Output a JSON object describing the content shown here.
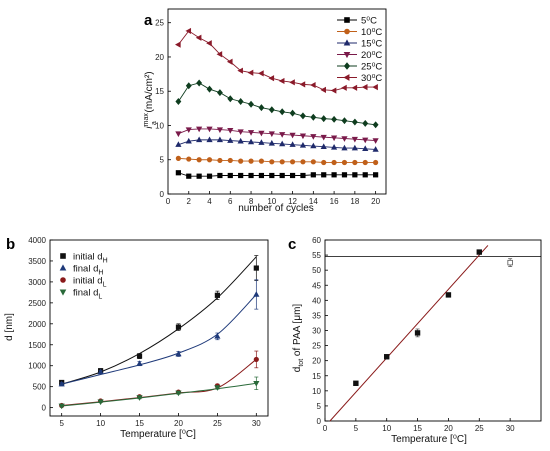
{
  "chart_data": [
    {
      "panel": "a",
      "type": "line",
      "xlabel": "number of cycles",
      "ylabel_main": "i",
      "ylabel_sup": "max",
      "ylabel_sub": "a",
      "ylabel_unit": " (mA/cm²)",
      "xlim": [
        0,
        21
      ],
      "ylim": [
        0,
        27
      ],
      "xticks": [
        "0",
        "2",
        "4",
        "6",
        "8",
        "10",
        "12",
        "14",
        "16",
        "18",
        "20"
      ],
      "yticks": [
        "0",
        "5",
        "10",
        "15",
        "20",
        "25"
      ],
      "legend_position": "right",
      "x": [
        1,
        2,
        3,
        4,
        5,
        6,
        7,
        8,
        9,
        10,
        11,
        12,
        13,
        14,
        15,
        16,
        17,
        18,
        19,
        20
      ],
      "series": [
        {
          "name": "5⁰C",
          "color": "#000000",
          "marker": "square",
          "values": [
            3.1,
            2.6,
            2.6,
            2.6,
            2.7,
            2.7,
            2.7,
            2.7,
            2.7,
            2.7,
            2.7,
            2.7,
            2.7,
            2.8,
            2.8,
            2.8,
            2.8,
            2.8,
            2.8,
            2.8
          ]
        },
        {
          "name": "10⁰C",
          "color": "#c0601a",
          "marker": "circle",
          "values": [
            5.2,
            5.1,
            5.0,
            5.0,
            4.9,
            4.9,
            4.8,
            4.8,
            4.8,
            4.7,
            4.7,
            4.7,
            4.7,
            4.7,
            4.6,
            4.6,
            4.6,
            4.6,
            4.6,
            4.6
          ]
        },
        {
          "name": "15⁰C",
          "color": "#1f2a6b",
          "marker": "triangle-up",
          "values": [
            7.2,
            7.7,
            7.9,
            7.9,
            7.9,
            7.8,
            7.7,
            7.6,
            7.5,
            7.4,
            7.3,
            7.2,
            7.1,
            7.0,
            6.9,
            6.8,
            6.7,
            6.7,
            6.6,
            6.5
          ]
        },
        {
          "name": "20⁰C",
          "color": "#7a1a4a",
          "marker": "triangle-down",
          "values": [
            8.8,
            9.4,
            9.5,
            9.5,
            9.4,
            9.3,
            9.1,
            9.0,
            8.9,
            8.8,
            8.7,
            8.6,
            8.5,
            8.4,
            8.3,
            8.2,
            8.1,
            8.0,
            7.9,
            7.8
          ]
        },
        {
          "name": "25⁰C",
          "color": "#0f3d1f",
          "marker": "diamond",
          "values": [
            13.5,
            15.8,
            16.2,
            15.3,
            14.8,
            13.9,
            13.5,
            13.1,
            12.6,
            12.3,
            12.0,
            11.8,
            11.4,
            11.2,
            11.0,
            10.9,
            10.7,
            10.5,
            10.3,
            10.1
          ]
        },
        {
          "name": "30⁰C",
          "color": "#8a1a2a",
          "marker": "triangle-left",
          "values": [
            21.8,
            23.8,
            22.8,
            22.0,
            20.4,
            19.3,
            18.0,
            17.7,
            17.6,
            16.9,
            16.5,
            16.3,
            16.0,
            15.9,
            15.2,
            15.1,
            15.5,
            15.5,
            15.6,
            15.6
          ]
        }
      ]
    },
    {
      "panel": "b",
      "type": "scatter",
      "xlabel": "Temperature [⁰C]",
      "ylabel": "d [nm]",
      "xlim": [
        3.5,
        31.5
      ],
      "ylim": [
        -200,
        4000
      ],
      "xticks": [
        "5",
        "10",
        "15",
        "20",
        "25",
        "30"
      ],
      "yticks": [
        "0",
        "500",
        "1000",
        "1500",
        "2000",
        "2500",
        "3000",
        "3500",
        "4000"
      ],
      "legend_position": "top-left",
      "x": [
        5,
        10,
        15,
        20,
        25,
        30
      ],
      "series": [
        {
          "name": "initial d",
          "sub": "H",
          "color": "#111111",
          "marker": "square",
          "values": [
            600,
            880,
            1230,
            1920,
            2680,
            3330
          ],
          "errors": [
            40,
            50,
            60,
            80,
            100,
            300
          ],
          "fit": [
            560,
            850,
            1290,
            1880,
            2620,
            3600
          ]
        },
        {
          "name": "final d",
          "sub": "H",
          "color": "#1f3a7a",
          "marker": "triangle-up",
          "values": [
            560,
            850,
            1050,
            1280,
            1700,
            2700
          ],
          "errors": [
            40,
            40,
            50,
            60,
            80,
            350
          ],
          "fit": [
            560,
            790,
            1020,
            1300,
            1750,
            2700
          ]
        },
        {
          "name": "initial d",
          "sub": "L",
          "color": "#8a1a1a",
          "marker": "circle",
          "values": [
            50,
            160,
            260,
            370,
            520,
            1150
          ],
          "errors": [
            20,
            20,
            30,
            30,
            40,
            200
          ],
          "fit": [
            50,
            140,
            240,
            350,
            470,
            1150
          ]
        },
        {
          "name": "final d",
          "sub": "L",
          "color": "#2a6a3a",
          "marker": "triangle-down",
          "values": [
            40,
            140,
            240,
            350,
            480,
            580
          ],
          "errors": [
            20,
            20,
            30,
            30,
            40,
            150
          ],
          "fit": [
            40,
            130,
            230,
            340,
            450,
            580
          ]
        }
      ]
    },
    {
      "panel": "c",
      "type": "scatter",
      "xlabel": "Temperature [⁰C]",
      "ylabel_main": "d",
      "ylabel_sub": "tot",
      "ylabel_rest": " of PAA [μm]",
      "xlim": [
        0,
        35
      ],
      "ylim": [
        0,
        60
      ],
      "xticks": [
        "0",
        "5",
        "10",
        "15",
        "20",
        "25",
        "30"
      ],
      "yticks": [
        "0",
        "5",
        "10",
        "15",
        "20",
        "25",
        "30",
        "35",
        "40",
        "45",
        "50",
        "55",
        "60"
      ],
      "points": [
        {
          "x": 5,
          "y": 12.5,
          "err": 0.4,
          "filled": true
        },
        {
          "x": 10,
          "y": 21.3,
          "err": 0.4,
          "filled": true
        },
        {
          "x": 15,
          "y": 29.2,
          "err": 1.3,
          "filled": true
        },
        {
          "x": 20,
          "y": 41.8,
          "err": 0.4,
          "filled": true
        },
        {
          "x": 25,
          "y": 56.0,
          "err": 0.4,
          "filled": true
        },
        {
          "x": 30,
          "y": 52.5,
          "err": 1.3,
          "filled": false
        }
      ],
      "fit_line": {
        "x": [
          0.8,
          26.4
        ],
        "y": [
          0,
          58.2
        ]
      },
      "hline": 54.5
    }
  ]
}
